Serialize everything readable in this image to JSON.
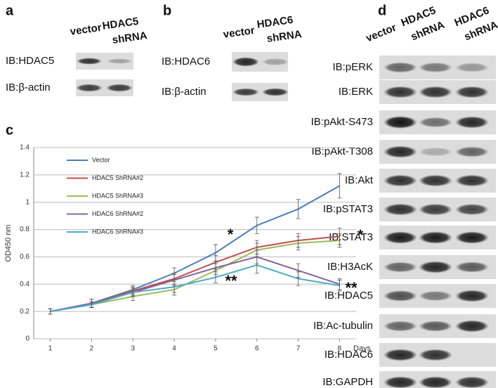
{
  "blot_a": {
    "label": "a",
    "lanes": [
      "vector",
      "HDAC5",
      "shRNA"
    ],
    "rows": [
      "IB:HDAC5",
      "IB:β-actin"
    ]
  },
  "blot_b": {
    "label": "b",
    "lanes": [
      "vector",
      "HDAC6",
      "shRNA"
    ],
    "rows": [
      "IB:HDAC6",
      "IB:β-actin"
    ]
  },
  "blot_d": {
    "label": "d",
    "lanes": [
      "vector",
      "HDAC5",
      "shRNA",
      "HDAC6",
      "shRNA"
    ],
    "rows": [
      "IB:pERK",
      "IB:ERK",
      "IB:pAkt-S473",
      "IB:pAkt-T308",
      "IB:Akt",
      "IB:pSTAT3",
      "IB:STAT3",
      "IB:H3AcK",
      "IB:HDAC5",
      "IB:Ac-tubulin",
      "IB:HDAC6",
      "IB:GAPDH"
    ]
  },
  "chart_data": {
    "type": "line",
    "panel_label": "c",
    "x_label": "Days",
    "y_label": "OD450 nm",
    "x": [
      1,
      2,
      3,
      4,
      5,
      6,
      7,
      8
    ],
    "xlim": [
      0.6,
      8.4
    ],
    "xticks": [
      1,
      2,
      3,
      4,
      5,
      6,
      7,
      8
    ],
    "ylim": [
      0,
      1.4
    ],
    "yticks": [
      0,
      0.2,
      0.4,
      0.6,
      0.8,
      1,
      1.2,
      1.4
    ],
    "grid": true,
    "legend": "upper left",
    "annotations": [
      "*",
      "*",
      "**",
      "**"
    ],
    "series": [
      {
        "name": "Vector",
        "color": "#4a7ebb",
        "values": [
          0.2,
          0.26,
          0.36,
          0.48,
          0.63,
          0.83,
          0.95,
          1.12
        ],
        "errors": [
          0.02,
          0.03,
          0.03,
          0.04,
          0.06,
          0.06,
          0.07,
          0.09
        ]
      },
      {
        "name": "HDAC5 ShRNA#2",
        "color": "#c0504d",
        "values": [
          0.2,
          0.26,
          0.35,
          0.44,
          0.56,
          0.67,
          0.72,
          0.75
        ],
        "errors": [
          0.02,
          0.03,
          0.03,
          0.04,
          0.05,
          0.05,
          0.05,
          0.06
        ]
      },
      {
        "name": "HDAC5 ShRNA#3",
        "color": "#9bbb59",
        "values": [
          0.2,
          0.25,
          0.31,
          0.36,
          0.5,
          0.65,
          0.7,
          0.72
        ],
        "errors": [
          0.02,
          0.02,
          0.03,
          0.04,
          0.05,
          0.05,
          0.05,
          0.05
        ]
      },
      {
        "name": "HDAC6 ShRNA#2",
        "color": "#8064a2",
        "values": [
          0.2,
          0.26,
          0.34,
          0.43,
          0.52,
          0.6,
          0.5,
          0.4
        ],
        "errors": [
          0.02,
          0.03,
          0.03,
          0.04,
          0.05,
          0.05,
          0.05,
          0.04
        ]
      },
      {
        "name": "HDAC6 ShRNA#3",
        "color": "#4bacc6",
        "values": [
          0.2,
          0.25,
          0.34,
          0.38,
          0.45,
          0.54,
          0.44,
          0.39
        ],
        "errors": [
          0.02,
          0.02,
          0.03,
          0.04,
          0.04,
          0.06,
          0.05,
          0.04
        ]
      }
    ]
  }
}
